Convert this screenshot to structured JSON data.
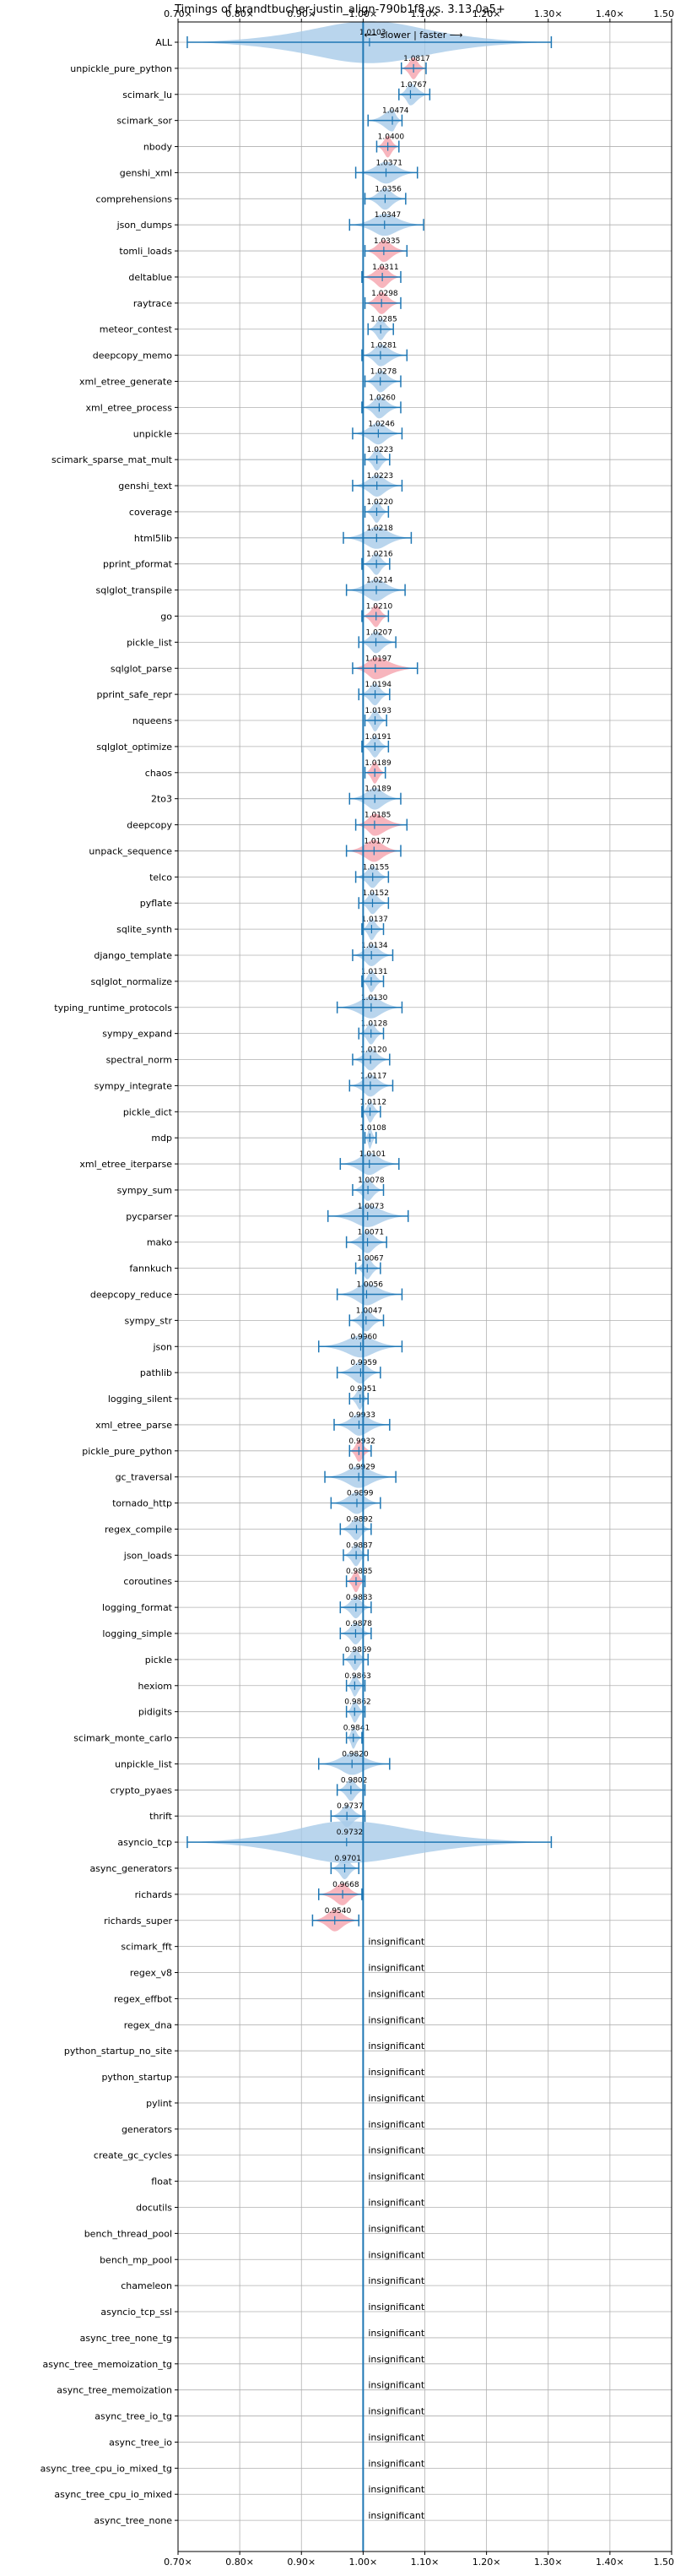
{
  "chart_data": {
    "type": "violin",
    "title": "Timings of brandtbucher-justin_align-790b1f8 vs. 3.13.0a5+",
    "annotation": "⟵ slower | faster ⟶",
    "x_ticks": [
      "0.70×",
      "0.80×",
      "0.90×",
      "1.00×",
      "1.10×",
      "1.20×",
      "1.30×",
      "1.40×",
      "1.50×+"
    ],
    "x_tick_values": [
      0.7,
      0.8,
      0.9,
      1.0,
      1.1,
      1.2,
      1.3,
      1.4,
      1.5
    ],
    "xlim": [
      0.7,
      1.5
    ],
    "reference_line": 1.0,
    "insignificant_label": "insignificant",
    "colors": {
      "violin": "#a8cbe8",
      "significant_violin": "#f5a3ad",
      "line": "#1f77b4",
      "grid": "#b0b0b0"
    },
    "benchmarks": [
      {
        "name": "ALL",
        "value": 1.0103,
        "label": "1.0103",
        "low": 0.715,
        "high": 1.305,
        "sig": false,
        "width": 0.8
      },
      {
        "name": "unpickle_pure_python",
        "value": 1.0817,
        "label": "1.0817",
        "low": 1.062,
        "high": 1.102,
        "sig": true
      },
      {
        "name": "scimark_lu",
        "value": 1.0767,
        "label": "1.0767",
        "low": 1.058,
        "high": 1.108,
        "sig": false
      },
      {
        "name": "scimark_sor",
        "value": 1.0474,
        "label": "1.0474",
        "low": 1.008,
        "high": 1.063,
        "sig": false
      },
      {
        "name": "nbody",
        "value": 1.04,
        "label": "1.0400",
        "low": 1.022,
        "high": 1.058,
        "sig": true
      },
      {
        "name": "genshi_xml",
        "value": 1.0371,
        "label": "1.0371",
        "low": 0.988,
        "high": 1.088,
        "sig": false
      },
      {
        "name": "comprehensions",
        "value": 1.0356,
        "label": "1.0356",
        "low": 1.003,
        "high": 1.069,
        "sig": false
      },
      {
        "name": "json_dumps",
        "value": 1.0347,
        "label": "1.0347",
        "low": 0.978,
        "high": 1.098,
        "sig": false
      },
      {
        "name": "tomli_loads",
        "value": 1.0335,
        "label": "1.0335",
        "low": 1.003,
        "high": 1.071,
        "sig": true
      },
      {
        "name": "deltablue",
        "value": 1.0311,
        "label": "1.0311",
        "low": 0.998,
        "high": 1.061,
        "sig": true
      },
      {
        "name": "raytrace",
        "value": 1.0298,
        "label": "1.0298",
        "low": 1.003,
        "high": 1.061,
        "sig": true
      },
      {
        "name": "meteor_contest",
        "value": 1.0285,
        "label": "1.0285",
        "low": 1.008,
        "high": 1.049,
        "sig": false
      },
      {
        "name": "deepcopy_memo",
        "value": 1.0281,
        "label": "1.0281",
        "low": 0.998,
        "high": 1.071,
        "sig": false
      },
      {
        "name": "xml_etree_generate",
        "value": 1.0278,
        "label": "1.0278",
        "low": 1.003,
        "high": 1.061,
        "sig": false
      },
      {
        "name": "xml_etree_process",
        "value": 1.026,
        "label": "1.0260",
        "low": 0.998,
        "high": 1.061,
        "sig": false
      },
      {
        "name": "unpickle",
        "value": 1.0246,
        "label": "1.0246",
        "low": 0.983,
        "high": 1.063,
        "sig": false
      },
      {
        "name": "scimark_sparse_mat_mult",
        "value": 1.0223,
        "label": "1.0223",
        "low": 1.003,
        "high": 1.043,
        "sig": false
      },
      {
        "name": "genshi_text",
        "value": 1.0223,
        "label": "1.0223",
        "low": 0.983,
        "high": 1.063,
        "sig": false
      },
      {
        "name": "coverage",
        "value": 1.022,
        "label": "1.0220",
        "low": 1.003,
        "high": 1.041,
        "sig": false
      },
      {
        "name": "html5lib",
        "value": 1.0218,
        "label": "1.0218",
        "low": 0.968,
        "high": 1.078,
        "sig": false
      },
      {
        "name": "pprint_pformat",
        "value": 1.0216,
        "label": "1.0216",
        "low": 0.998,
        "high": 1.043,
        "sig": false
      },
      {
        "name": "sqlglot_transpile",
        "value": 1.0214,
        "label": "1.0214",
        "low": 0.973,
        "high": 1.068,
        "sig": false
      },
      {
        "name": "go",
        "value": 1.021,
        "label": "1.0210",
        "low": 0.998,
        "high": 1.041,
        "sig": true
      },
      {
        "name": "pickle_list",
        "value": 1.0207,
        "label": "1.0207",
        "low": 0.993,
        "high": 1.053,
        "sig": false
      },
      {
        "name": "sqlglot_parse",
        "value": 1.0197,
        "label": "1.0197",
        "low": 0.983,
        "high": 1.088,
        "sig": true
      },
      {
        "name": "pprint_safe_repr",
        "value": 1.0194,
        "label": "1.0194",
        "low": 0.993,
        "high": 1.043,
        "sig": false
      },
      {
        "name": "nqueens",
        "value": 1.0193,
        "label": "1.0193",
        "low": 1.003,
        "high": 1.038,
        "sig": false
      },
      {
        "name": "sqlglot_optimize",
        "value": 1.0191,
        "label": "1.0191",
        "low": 0.998,
        "high": 1.041,
        "sig": false
      },
      {
        "name": "chaos",
        "value": 1.0189,
        "label": "1.0189",
        "low": 1.003,
        "high": 1.036,
        "sig": true
      },
      {
        "name": "2to3",
        "value": 1.0189,
        "label": "1.0189",
        "low": 0.978,
        "high": 1.061,
        "sig": false
      },
      {
        "name": "deepcopy",
        "value": 1.0185,
        "label": "1.0185",
        "low": 0.988,
        "high": 1.071,
        "sig": true
      },
      {
        "name": "unpack_sequence",
        "value": 1.0177,
        "label": "1.0177",
        "low": 0.973,
        "high": 1.061,
        "sig": true
      },
      {
        "name": "telco",
        "value": 1.0155,
        "label": "1.0155",
        "low": 0.988,
        "high": 1.041,
        "sig": false
      },
      {
        "name": "pyflate",
        "value": 1.0152,
        "label": "1.0152",
        "low": 0.993,
        "high": 1.041,
        "sig": false
      },
      {
        "name": "sqlite_synth",
        "value": 1.0137,
        "label": "1.0137",
        "low": 0.998,
        "high": 1.033,
        "sig": false
      },
      {
        "name": "django_template",
        "value": 1.0134,
        "label": "1.0134",
        "low": 0.983,
        "high": 1.048,
        "sig": false
      },
      {
        "name": "sqlglot_normalize",
        "value": 1.0131,
        "label": "1.0131",
        "low": 0.998,
        "high": 1.033,
        "sig": false
      },
      {
        "name": "typing_runtime_protocols",
        "value": 1.013,
        "label": "1.0130",
        "low": 0.958,
        "high": 1.063,
        "sig": false
      },
      {
        "name": "sympy_expand",
        "value": 1.0128,
        "label": "1.0128",
        "low": 0.993,
        "high": 1.033,
        "sig": false
      },
      {
        "name": "spectral_norm",
        "value": 1.012,
        "label": "1.0120",
        "low": 0.983,
        "high": 1.043,
        "sig": false
      },
      {
        "name": "sympy_integrate",
        "value": 1.0117,
        "label": "1.0117",
        "low": 0.978,
        "high": 1.048,
        "sig": false
      },
      {
        "name": "pickle_dict",
        "value": 1.0112,
        "label": "1.0112",
        "low": 0.998,
        "high": 1.028,
        "sig": false
      },
      {
        "name": "mdp",
        "value": 1.0108,
        "label": "1.0108",
        "low": 1.003,
        "high": 1.021,
        "sig": false
      },
      {
        "name": "xml_etree_iterparse",
        "value": 1.0101,
        "label": "1.0101",
        "low": 0.963,
        "high": 1.058,
        "sig": false
      },
      {
        "name": "sympy_sum",
        "value": 1.0078,
        "label": "1.0078",
        "low": 0.983,
        "high": 1.033,
        "sig": false
      },
      {
        "name": "pycparser",
        "value": 1.0073,
        "label": "1.0073",
        "low": 0.943,
        "high": 1.073,
        "sig": false
      },
      {
        "name": "mako",
        "value": 1.0071,
        "label": "1.0071",
        "low": 0.973,
        "high": 1.038,
        "sig": false
      },
      {
        "name": "fannkuch",
        "value": 1.0067,
        "label": "1.0067",
        "low": 0.988,
        "high": 1.028,
        "sig": false
      },
      {
        "name": "deepcopy_reduce",
        "value": 1.0056,
        "label": "1.0056",
        "low": 0.958,
        "high": 1.063,
        "sig": false
      },
      {
        "name": "sympy_str",
        "value": 1.0047,
        "label": "1.0047",
        "low": 0.978,
        "high": 1.033,
        "sig": false
      },
      {
        "name": "json",
        "value": 0.996,
        "label": "0.9960",
        "low": 0.928,
        "high": 1.063,
        "sig": false
      },
      {
        "name": "pathlib",
        "value": 0.9959,
        "label": "0.9959",
        "low": 0.958,
        "high": 1.028,
        "sig": false
      },
      {
        "name": "logging_silent",
        "value": 0.9951,
        "label": "0.9951",
        "low": 0.978,
        "high": 1.008,
        "sig": false
      },
      {
        "name": "xml_etree_parse",
        "value": 0.9933,
        "label": "0.9933",
        "low": 0.953,
        "high": 1.043,
        "sig": false
      },
      {
        "name": "pickle_pure_python",
        "value": 0.9932,
        "label": "0.9932",
        "low": 0.978,
        "high": 1.013,
        "sig": true
      },
      {
        "name": "gc_traversal",
        "value": 0.9929,
        "label": "0.9929",
        "low": 0.938,
        "high": 1.053,
        "sig": false
      },
      {
        "name": "tornado_http",
        "value": 0.9899,
        "label": "0.9899",
        "low": 0.948,
        "high": 1.028,
        "sig": false
      },
      {
        "name": "regex_compile",
        "value": 0.9892,
        "label": "0.9892",
        "low": 0.963,
        "high": 1.013,
        "sig": false
      },
      {
        "name": "json_loads",
        "value": 0.9887,
        "label": "0.9887",
        "low": 0.968,
        "high": 1.008,
        "sig": false
      },
      {
        "name": "coroutines",
        "value": 0.9885,
        "label": "0.9885",
        "low": 0.973,
        "high": 1.003,
        "sig": true
      },
      {
        "name": "logging_format",
        "value": 0.9883,
        "label": "0.9883",
        "low": 0.963,
        "high": 1.013,
        "sig": false
      },
      {
        "name": "logging_simple",
        "value": 0.9878,
        "label": "0.9878",
        "low": 0.963,
        "high": 1.013,
        "sig": false
      },
      {
        "name": "pickle",
        "value": 0.9869,
        "label": "0.9869",
        "low": 0.968,
        "high": 1.008,
        "sig": false
      },
      {
        "name": "hexiom",
        "value": 0.9863,
        "label": "0.9863",
        "low": 0.973,
        "high": 1.003,
        "sig": false
      },
      {
        "name": "pidigits",
        "value": 0.9862,
        "label": "0.9862",
        "low": 0.973,
        "high": 1.003,
        "sig": false
      },
      {
        "name": "scimark_monte_carlo",
        "value": 0.9841,
        "label": "0.9841",
        "low": 0.973,
        "high": 0.998,
        "sig": false
      },
      {
        "name": "unpickle_list",
        "value": 0.982,
        "label": "0.9820",
        "low": 0.928,
        "high": 1.043,
        "sig": false
      },
      {
        "name": "crypto_pyaes",
        "value": 0.9802,
        "label": "0.9802",
        "low": 0.958,
        "high": 1.003,
        "sig": false
      },
      {
        "name": "thrift",
        "value": 0.9737,
        "label": "0.9737",
        "low": 0.948,
        "high": 1.003,
        "sig": false
      },
      {
        "name": "asyncio_tcp",
        "value": 0.9732,
        "label": "0.9732",
        "low": 0.715,
        "high": 1.305,
        "sig": false,
        "width": 0.8
      },
      {
        "name": "async_generators",
        "value": 0.9701,
        "label": "0.9701",
        "low": 0.948,
        "high": 0.993,
        "sig": false
      },
      {
        "name": "richards",
        "value": 0.9668,
        "label": "0.9668",
        "low": 0.928,
        "high": 0.998,
        "sig": true
      },
      {
        "name": "richards_super",
        "value": 0.954,
        "label": "0.9540",
        "low": 0.918,
        "high": 0.993,
        "sig": true
      },
      {
        "name": "scimark_fft",
        "insignificant": true
      },
      {
        "name": "regex_v8",
        "insignificant": true
      },
      {
        "name": "regex_effbot",
        "insignificant": true
      },
      {
        "name": "regex_dna",
        "insignificant": true
      },
      {
        "name": "python_startup_no_site",
        "insignificant": true
      },
      {
        "name": "python_startup",
        "insignificant": true
      },
      {
        "name": "pylint",
        "insignificant": true
      },
      {
        "name": "generators",
        "insignificant": true
      },
      {
        "name": "create_gc_cycles",
        "insignificant": true
      },
      {
        "name": "float",
        "insignificant": true
      },
      {
        "name": "docutils",
        "insignificant": true
      },
      {
        "name": "bench_thread_pool",
        "insignificant": true
      },
      {
        "name": "bench_mp_pool",
        "insignificant": true
      },
      {
        "name": "chameleon",
        "insignificant": true
      },
      {
        "name": "asyncio_tcp_ssl",
        "insignificant": true
      },
      {
        "name": "async_tree_none_tg",
        "insignificant": true
      },
      {
        "name": "async_tree_memoization_tg",
        "insignificant": true
      },
      {
        "name": "async_tree_memoization",
        "insignificant": true
      },
      {
        "name": "async_tree_io_tg",
        "insignificant": true
      },
      {
        "name": "async_tree_io",
        "insignificant": true
      },
      {
        "name": "async_tree_cpu_io_mixed_tg",
        "insignificant": true
      },
      {
        "name": "async_tree_cpu_io_mixed",
        "insignificant": true
      },
      {
        "name": "async_tree_none",
        "insignificant": true
      }
    ]
  }
}
